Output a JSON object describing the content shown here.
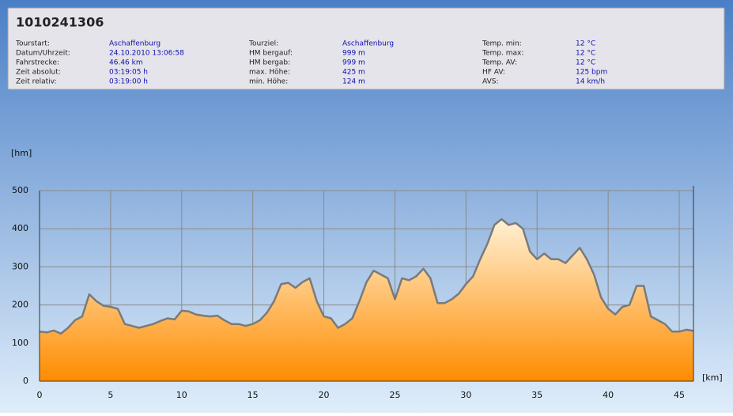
{
  "header": {
    "title": "1010241306",
    "columns": [
      [
        {
          "label": "Tourstart:",
          "value": "Aschaffenburg"
        },
        {
          "label": "Datum/Uhrzeit:",
          "value": "24.10.2010 13:06:58"
        },
        {
          "label": "Fahrstrecke:",
          "value": "46.46 km"
        },
        {
          "label": "Zeit absolut:",
          "value": "03:19:05 h"
        },
        {
          "label": "Zeit relativ:",
          "value": "03:19:00 h"
        }
      ],
      [
        {
          "label": "Tourziel:",
          "value": "Aschaffenburg"
        },
        {
          "label": "HM bergauf:",
          "value": "999 m"
        },
        {
          "label": "HM bergab:",
          "value": "999 m"
        },
        {
          "label": "max. Höhe:",
          "value": "425 m"
        },
        {
          "label": "min. Höhe:",
          "value": "124 m"
        }
      ],
      [
        {
          "label": "Temp. min:",
          "value": "12 °C"
        },
        {
          "label": "Temp. max:",
          "value": "12 °C"
        },
        {
          "label": "Temp. AV:",
          "value": "12 °C"
        },
        {
          "label": "HF AV:",
          "value": "125 bpm"
        },
        {
          "label": "AVS:",
          "value": "14 km/h"
        }
      ]
    ]
  },
  "chart_data": {
    "type": "area",
    "y_label": "[hm]",
    "x_label": "[km]",
    "x": [
      0,
      0.5,
      1,
      1.5,
      2,
      2.5,
      3,
      3.5,
      4,
      4.5,
      5,
      5.5,
      6,
      6.5,
      7,
      7.5,
      8,
      8.5,
      9,
      9.5,
      10,
      10.5,
      11,
      11.5,
      12,
      12.5,
      13,
      13.5,
      14,
      14.5,
      15,
      15.5,
      16,
      16.5,
      17,
      17.5,
      18,
      18.5,
      19,
      19.5,
      20,
      20.5,
      21,
      21.5,
      22,
      22.5,
      23,
      23.5,
      24,
      24.5,
      25,
      25.5,
      26,
      26.5,
      27,
      27.5,
      28,
      28.5,
      29,
      29.5,
      30,
      30.5,
      31,
      31.5,
      32,
      32.5,
      33,
      33.5,
      34,
      34.5,
      35,
      35.5,
      36,
      36.5,
      37,
      37.5,
      38,
      38.5,
      39,
      39.5,
      40,
      40.5,
      41,
      41.5,
      42,
      42.5,
      43,
      43.5,
      44,
      44.5,
      45,
      45.5,
      46
    ],
    "series": [
      {
        "color": "#ff9900",
        "line_color": "#7a7a7a",
        "values": [
          130,
          128,
          133,
          125,
          140,
          160,
          170,
          228,
          210,
          198,
          195,
          190,
          150,
          145,
          140,
          145,
          150,
          158,
          165,
          162,
          185,
          183,
          175,
          172,
          170,
          172,
          160,
          150,
          150,
          145,
          150,
          160,
          180,
          210,
          255,
          258,
          245,
          260,
          270,
          210,
          170,
          165,
          140,
          150,
          165,
          210,
          260,
          290,
          280,
          270,
          215,
          270,
          265,
          275,
          295,
          270,
          205,
          205,
          215,
          230,
          255,
          275,
          320,
          360,
          410,
          425,
          410,
          415,
          400,
          340,
          320,
          335,
          320,
          320,
          310,
          330,
          350,
          320,
          280,
          220,
          190,
          175,
          195,
          200,
          250,
          250,
          170,
          160,
          150,
          130,
          130,
          135,
          132
        ]
      }
    ],
    "xlim": [
      0,
      46
    ],
    "xticks": [
      0,
      5,
      10,
      15,
      20,
      25,
      30,
      35,
      40,
      45
    ],
    "ylim": [
      0,
      500
    ],
    "yticks": [
      0,
      100,
      200,
      300,
      400,
      500
    ],
    "grid": true
  }
}
